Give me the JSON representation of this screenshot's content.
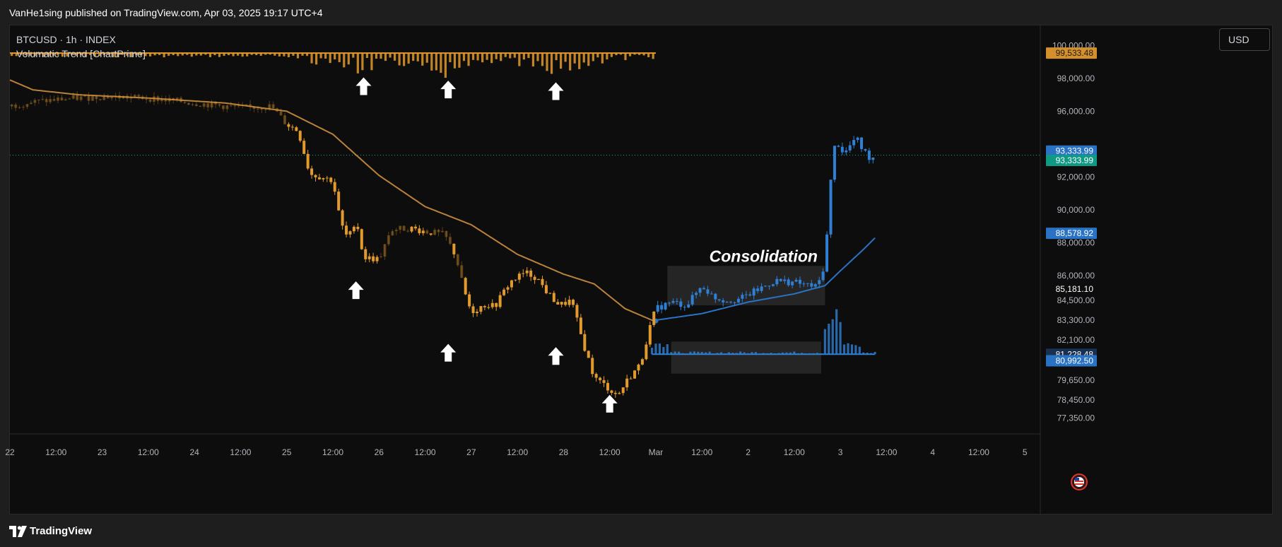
{
  "header": {
    "publisher": "VanHe1sing published on TradingView.com, Apr 03, 2025 19:17 UTC+4"
  },
  "legend": {
    "symbol_line": "BTCUSD · 1h · INDEX",
    "indicator": "Volumatic Trend [ChartPrime]"
  },
  "currency_button": "USD",
  "footer": {
    "brand": "TradingView"
  },
  "colors": {
    "bear": "#e39a2d",
    "bull": "#2f7fd3",
    "trend_bear": "#b8823a",
    "trend_bull": "#2a73c4",
    "background": "#0d0d0d"
  },
  "chart_data": {
    "type": "candlestick",
    "symbol": "BTCUSD",
    "interval": "1h",
    "ylim": [
      76600,
      101000
    ],
    "y_ticks": [
      100000,
      98000,
      96000,
      92000,
      90000,
      88000,
      86000,
      84500,
      83300,
      82100,
      79650,
      78450,
      77350
    ],
    "y_tick_labels": [
      "100,000.00",
      "98,000.00",
      "96,000.00",
      "92,000.00",
      "90,000.00",
      "88,000.00",
      "86,000.00",
      "84,500.00",
      "83,300.00",
      "82,100.00",
      "79,650.00",
      "78,450.00",
      "77,350.00"
    ],
    "x_ticks": [
      {
        "label": "22",
        "t": 0
      },
      {
        "label": "12:00",
        "t": 12
      },
      {
        "label": "23",
        "t": 24
      },
      {
        "label": "12:00",
        "t": 36
      },
      {
        "label": "24",
        "t": 48
      },
      {
        "label": "12:00",
        "t": 60
      },
      {
        "label": "25",
        "t": 72
      },
      {
        "label": "12:00",
        "t": 84
      },
      {
        "label": "26",
        "t": 96
      },
      {
        "label": "12:00",
        "t": 108
      },
      {
        "label": "27",
        "t": 120
      },
      {
        "label": "12:00",
        "t": 132
      },
      {
        "label": "28",
        "t": 144
      },
      {
        "label": "12:00",
        "t": 156
      },
      {
        "label": "Mar",
        "t": 168
      },
      {
        "label": "12:00",
        "t": 180
      },
      {
        "label": "2",
        "t": 192
      },
      {
        "label": "12:00",
        "t": 204
      },
      {
        "label": "3",
        "t": 216
      },
      {
        "label": "12:00",
        "t": 228
      },
      {
        "label": "4",
        "t": 240
      },
      {
        "label": "12:00",
        "t": 252
      },
      {
        "label": "5",
        "t": 264
      }
    ],
    "price_path": [
      {
        "t": 0,
        "p": 96300
      },
      {
        "t": 4,
        "p": 96500
      },
      {
        "t": 12,
        "p": 96700
      },
      {
        "t": 24,
        "p": 96900
      },
      {
        "t": 36,
        "p": 96800
      },
      {
        "t": 48,
        "p": 96500
      },
      {
        "t": 60,
        "p": 96200
      },
      {
        "t": 68,
        "p": 96300
      },
      {
        "t": 72,
        "p": 95200
      },
      {
        "t": 75,
        "p": 94800
      },
      {
        "t": 78,
        "p": 92200
      },
      {
        "t": 84,
        "p": 91800
      },
      {
        "t": 86,
        "p": 89200
      },
      {
        "t": 88,
        "p": 88200
      },
      {
        "t": 90,
        "p": 89500
      },
      {
        "t": 92,
        "p": 87100
      },
      {
        "t": 96,
        "p": 87000
      },
      {
        "t": 99,
        "p": 88800
      },
      {
        "t": 104,
        "p": 88900
      },
      {
        "t": 108,
        "p": 88700
      },
      {
        "t": 113,
        "p": 88500
      },
      {
        "t": 116,
        "p": 87200
      },
      {
        "t": 118,
        "p": 85200
      },
      {
        "t": 120,
        "p": 83800
      },
      {
        "t": 124,
        "p": 84300
      },
      {
        "t": 126,
        "p": 84100
      },
      {
        "t": 130,
        "p": 85600
      },
      {
        "t": 134,
        "p": 86200
      },
      {
        "t": 137,
        "p": 85900
      },
      {
        "t": 140,
        "p": 84900
      },
      {
        "t": 143,
        "p": 84200
      },
      {
        "t": 146,
        "p": 84500
      },
      {
        "t": 149,
        "p": 82000
      },
      {
        "t": 152,
        "p": 79800
      },
      {
        "t": 155,
        "p": 79300
      },
      {
        "t": 158,
        "p": 78700
      },
      {
        "t": 161,
        "p": 79800
      },
      {
        "t": 164,
        "p": 80600
      },
      {
        "t": 166,
        "p": 82500
      },
      {
        "t": 168,
        "p": 84000
      },
      {
        "t": 172,
        "p": 84400
      },
      {
        "t": 176,
        "p": 84200
      },
      {
        "t": 180,
        "p": 85400
      },
      {
        "t": 183,
        "p": 84700
      },
      {
        "t": 186,
        "p": 84500
      },
      {
        "t": 190,
        "p": 84600
      },
      {
        "t": 195,
        "p": 85200
      },
      {
        "t": 199,
        "p": 85700
      },
      {
        "t": 204,
        "p": 85600
      },
      {
        "t": 210,
        "p": 85300
      },
      {
        "t": 212,
        "p": 86800
      },
      {
        "t": 213,
        "p": 90100
      },
      {
        "t": 214,
        "p": 93400
      },
      {
        "t": 215,
        "p": 94200
      },
      {
        "t": 217,
        "p": 93400
      },
      {
        "t": 220,
        "p": 94400
      },
      {
        "t": 222,
        "p": 93600
      },
      {
        "t": 224,
        "p": 93100
      },
      {
        "t": 225,
        "p": 93334
      }
    ],
    "trend_line": {
      "bear": [
        {
          "t": 0,
          "p": 97900
        },
        {
          "t": 6,
          "p": 97300
        },
        {
          "t": 18,
          "p": 97000
        },
        {
          "t": 36,
          "p": 96800
        },
        {
          "t": 56,
          "p": 96500
        },
        {
          "t": 72,
          "p": 96000
        },
        {
          "t": 84,
          "p": 94600
        },
        {
          "t": 96,
          "p": 92100
        },
        {
          "t": 108,
          "p": 90200
        },
        {
          "t": 120,
          "p": 89100
        },
        {
          "t": 132,
          "p": 87300
        },
        {
          "t": 144,
          "p": 86100
        },
        {
          "t": 152,
          "p": 85500
        },
        {
          "t": 160,
          "p": 84000
        },
        {
          "t": 168,
          "p": 83200
        }
      ],
      "bull": [
        {
          "t": 168,
          "p": 83300
        },
        {
          "t": 180,
          "p": 83700
        },
        {
          "t": 192,
          "p": 84400
        },
        {
          "t": 204,
          "p": 84900
        },
        {
          "t": 212,
          "p": 85400
        },
        {
          "t": 216,
          "p": 86300
        },
        {
          "t": 222,
          "p": 87600
        },
        {
          "t": 225,
          "p": 88300
        }
      ]
    },
    "trend_band_start": 99533.48,
    "volume_base_bull": 81228.48,
    "arrows": [
      {
        "t": 92,
        "p": 97500
      },
      {
        "t": 114,
        "p": 97300
      },
      {
        "t": 142,
        "p": 97200
      },
      {
        "t": 90,
        "p": 85100
      },
      {
        "t": 114,
        "p": 81300
      },
      {
        "t": 142,
        "p": 81100
      },
      {
        "t": 156,
        "p": 78200
      }
    ],
    "annotation": {
      "text": "Consolidation",
      "t": 196,
      "p": 86850
    },
    "boxes": [
      {
        "t0": 171,
        "t1": 212,
        "p0": 84200,
        "p1": 86600
      },
      {
        "t0": 172,
        "t1": 211,
        "p0": 80050,
        "p1": 82000
      }
    ],
    "price_labels": [
      {
        "text": "99,533.48",
        "p": 99533.48,
        "color": "#d4902a",
        "fg": "#1a1a1a"
      },
      {
        "text": "93,333.99",
        "p": 93580,
        "color": "#2a73c4",
        "fg": "#ffffff"
      },
      {
        "text": "93,333.99",
        "p": 93010,
        "color": "#0f9a84",
        "fg": "#ffffff"
      },
      {
        "text": "88,578.92",
        "p": 88578.92,
        "color": "#2a73c4",
        "fg": "#ffffff"
      },
      {
        "text": "85,181.10",
        "p": 85181.1,
        "color": "#0d0d0d",
        "fg": "#ffffff"
      },
      {
        "text": "81,228.48",
        "p": 81228.48,
        "color": "#1a3050",
        "fg": "#ffffff"
      },
      {
        "text": "80,992.50",
        "p": 80830,
        "color": "#2a73c4",
        "fg": "#ffffff"
      }
    ],
    "last_price": 93333.99
  }
}
